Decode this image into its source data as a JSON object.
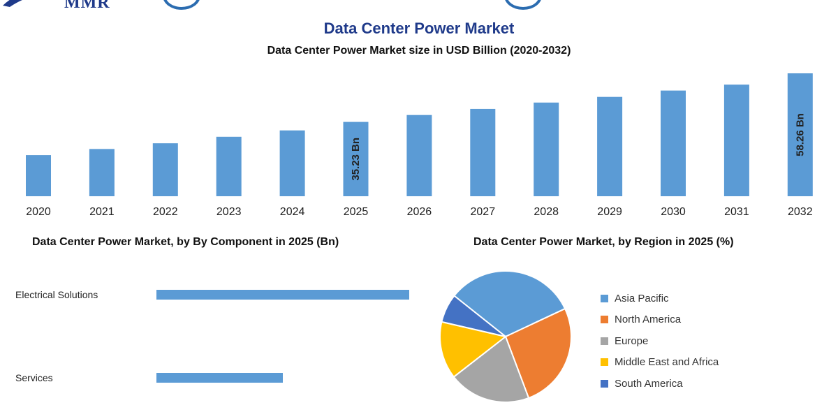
{
  "header": {
    "logo_text": "MMR"
  },
  "colors": {
    "title": "#1f3a8a",
    "bar": "#5b9bd5",
    "asia_pacific": "#5b9bd5",
    "north_america": "#ed7d31",
    "europe": "#a5a5a5",
    "mea": "#ffc000",
    "south_america": "#4472c4"
  },
  "chart_data": [
    {
      "type": "bar",
      "title": "Data Center Power Market",
      "subtitle": "Data Center Power Market size in USD Billion (2020-2032)",
      "categories": [
        "2020",
        "2021",
        "2022",
        "2023",
        "2024",
        "2025",
        "2026",
        "2027",
        "2028",
        "2029",
        "2030",
        "2031",
        "2032"
      ],
      "values": [
        19.5,
        22.4,
        25.1,
        28.2,
        31.2,
        35.23,
        38.5,
        41.4,
        44.4,
        47.1,
        50.1,
        52.9,
        58.26
      ],
      "data_labels": {
        "5": "35.23 Bn",
        "12": "58.26 Bn"
      },
      "ylim": [
        0,
        60
      ],
      "grid": false
    },
    {
      "type": "bar",
      "orientation": "horizontal",
      "title": "Data Center Power Market, by By Component in 2025 (Bn)",
      "categories": [
        "Electrical Solutions",
        "Services"
      ],
      "values": [
        25.0,
        12.5
      ],
      "xlim": [
        0,
        25
      ],
      "grid": false
    },
    {
      "type": "pie",
      "title": "Data Center Power Market, by Region in 2025 (%)",
      "categories": [
        "Asia Pacific",
        "North America",
        "Europe",
        "Middle East and Africa",
        "South America"
      ],
      "values": [
        32,
        26,
        20,
        14,
        7
      ],
      "legend_position": "right"
    }
  ]
}
